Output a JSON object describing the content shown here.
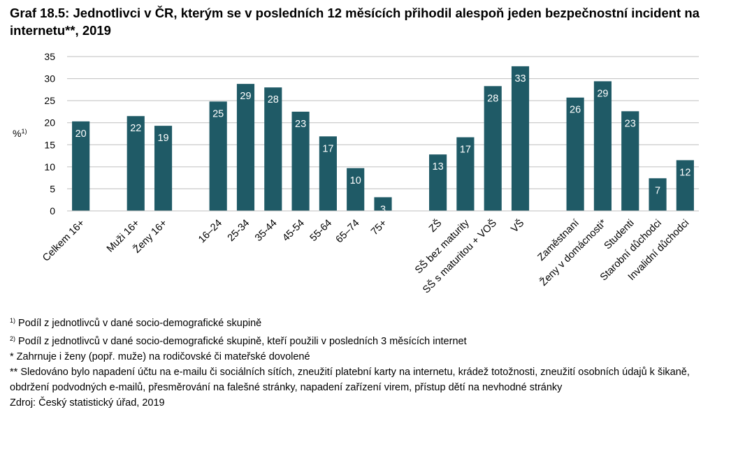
{
  "title": "Graf 18.5: Jednotlivci v ČR, kterým se v posledních 12 měsících přihodil alespoň jeden bezpečnostní incident na internetu**, 2019",
  "chart_data": {
    "type": "bar",
    "ylabel": "%",
    "ylabel_sup": "1)",
    "ylim": [
      0,
      35
    ],
    "yticks": [
      0,
      5,
      10,
      15,
      20,
      25,
      30,
      35
    ],
    "grid": true,
    "color": "#1f5a66",
    "groups": [
      {
        "categories": [
          "Celkem 16+"
        ],
        "values": [
          20.3
        ]
      },
      {
        "categories": [
          "Muži 16+",
          "Ženy 16+"
        ],
        "values": [
          21.5,
          19.3
        ]
      },
      {
        "categories": [
          "16–24",
          "25-34",
          "35-44",
          "45-54",
          "55-64",
          "65–74",
          "75+"
        ],
        "values": [
          24.8,
          28.8,
          28.0,
          22.5,
          16.9,
          9.7,
          3.1
        ]
      },
      {
        "categories": [
          "ZŠ",
          "SŠ bez maturity",
          "SŠ s maturitou + VOŠ",
          "VŠ"
        ],
        "values": [
          12.8,
          16.7,
          28.3,
          32.8
        ]
      },
      {
        "categories": [
          "Zaměstnaní",
          "Ženy v domácnosti*",
          "Studenti",
          "Starobní důchodci",
          "Invalidní důchodci"
        ],
        "values": [
          25.7,
          29.4,
          22.6,
          7.4,
          11.5
        ]
      }
    ]
  },
  "notes": {
    "n1_sup": "1)",
    "n1": "Podíl z jednotlivců v dané socio-demografické skupině",
    "n2_sup": "2)",
    "n2": "Podíl z jednotlivců v dané socio-demografické skupině, kteří použili v posledních 3 měsících internet",
    "n3": "* Zahrnuje i ženy (popř. muže) na rodičovské či mateřské dovolené",
    "n4": "** Sledováno bylo napadení účtu na e-mailu či sociálních sítích, zneužití platební karty na internetu, krádež totožnosti, zneužití osobních údajů k šikaně, obdržení podvodných e-mailů, přesměrování na falešné stránky, napadení zařízení virem, přístup dětí na nevhodné stránky",
    "source": "Zdroj: Český statistický úřad, 2019"
  }
}
